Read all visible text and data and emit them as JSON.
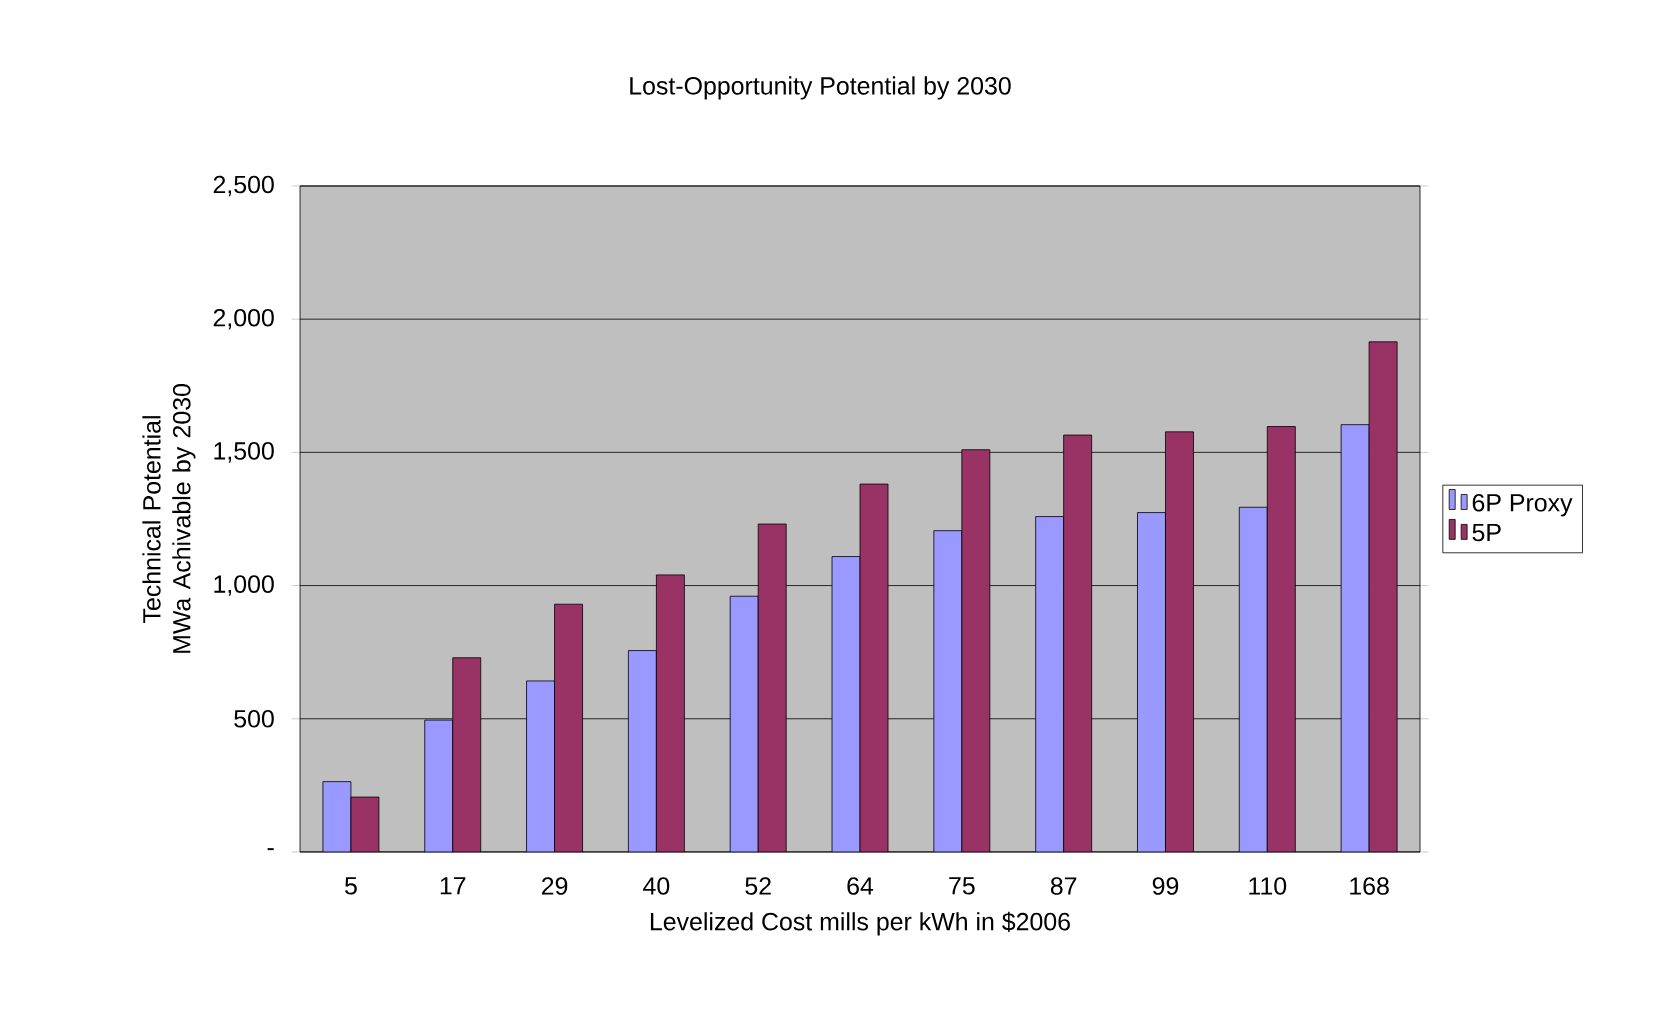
{
  "chart_data": {
    "type": "bar",
    "title": "Lost-Opportunity Potential by 2030",
    "xlabel": "Levelized Cost mills per kWh in $2006",
    "ylabel": "Technical Potential\nMWa Achivable by 2030",
    "categories": [
      "5",
      "17",
      "29",
      "40",
      "52",
      "64",
      "75",
      "87",
      "99",
      "110",
      "168"
    ],
    "series": [
      {
        "name": "6P Proxy",
        "color": "#9999ff",
        "values": [
          264,
          495,
          642,
          756,
          960,
          1109,
          1206,
          1259,
          1274,
          1294,
          1604
        ]
      },
      {
        "name": "5P",
        "color": "#993366",
        "values": [
          206,
          729,
          930,
          1040,
          1231,
          1381,
          1510,
          1565,
          1577,
          1597,
          1915
        ]
      }
    ],
    "ylim": [
      0,
      2500
    ],
    "yticks": [
      {
        "value": 0,
        "label": "-"
      },
      {
        "value": 500,
        "label": "500"
      },
      {
        "value": 1000,
        "label": "1,000"
      },
      {
        "value": 1500,
        "label": "1,500"
      },
      {
        "value": 2000,
        "label": "2,000"
      },
      {
        "value": 2500,
        "label": "2,500"
      }
    ],
    "grid": "y",
    "legend": "right"
  }
}
